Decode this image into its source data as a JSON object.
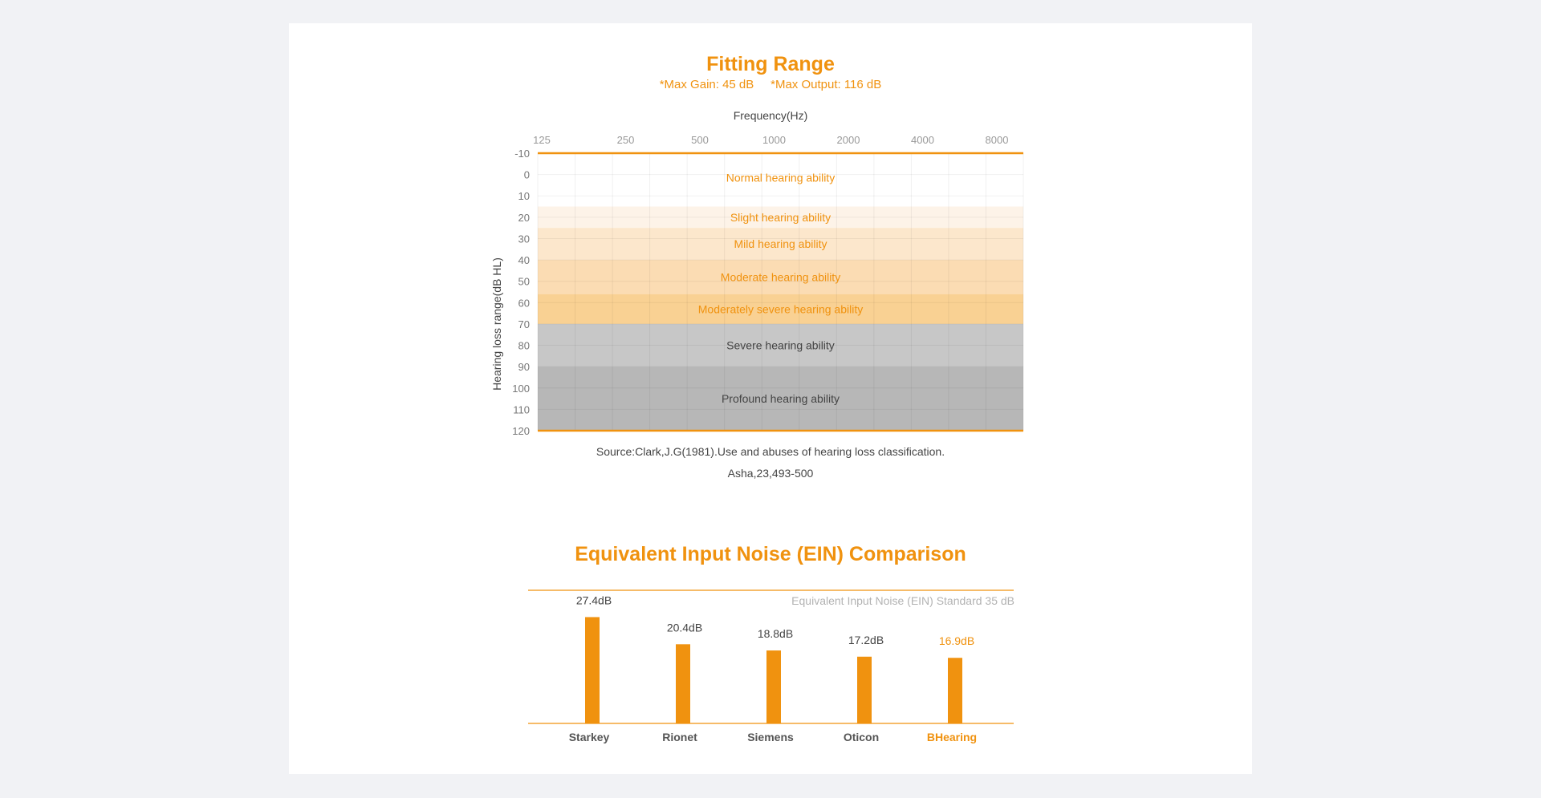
{
  "fitting": {
    "title": "Fitting Range",
    "subtitle": "*Max Gain: 45 dB     *Max Output: 116 dB",
    "source_line1": "Source:Clark,J.G(1981).Use and abuses of hearing loss classification.",
    "source_line2": "Asha,23,493-500"
  },
  "ein": {
    "title": "Equivalent Input Noise (EIN) Comparison",
    "standard_label": "Equivalent Input Noise (EIN) Standard 35 dB"
  },
  "colors": {
    "accent": "#f0920f",
    "grey_text": "#444444"
  },
  "chart_data": [
    {
      "type": "heatmap",
      "title": "Fitting Range",
      "xlabel": "Frequency(Hz)",
      "ylabel": "Hearing loss range(dB HL)",
      "x_ticks": [
        "125",
        "250",
        "500",
        "1000",
        "2000",
        "4000",
        "8000"
      ],
      "y_ticks": [
        -10,
        0,
        10,
        20,
        30,
        40,
        50,
        60,
        70,
        80,
        90,
        100,
        110,
        120
      ],
      "ylim": [
        -10,
        120
      ],
      "y_inverted": true,
      "grid": true,
      "bands": [
        {
          "label": "Normal hearing ability",
          "from": -10,
          "to": 15,
          "color": "#ffffff",
          "text_color": "#f0920f"
        },
        {
          "label": "Slight hearing ability",
          "from": 15,
          "to": 25,
          "color": "#fdf3e8",
          "text_color": "#f0920f"
        },
        {
          "label": "Mild hearing ability",
          "from": 25,
          "to": 40,
          "color": "#fce7cc",
          "text_color": "#f0920f"
        },
        {
          "label": "Moderate hearing ability",
          "from": 40,
          "to": 56,
          "color": "#fbdcb3",
          "text_color": "#f0920f"
        },
        {
          "label": "Moderately severe hearing ability",
          "from": 56,
          "to": 70,
          "color": "#f9d193",
          "text_color": "#f0920f"
        },
        {
          "label": "Severe hearing ability",
          "from": 70,
          "to": 90,
          "color": "#c7c7c7",
          "text_color": "#444444"
        },
        {
          "label": "Profound hearing ability",
          "from": 90,
          "to": 120,
          "color": "#b7b7b7",
          "text_color": "#444444"
        }
      ],
      "boundary_lines": [
        -10,
        120
      ]
    },
    {
      "type": "bar",
      "title": "Equivalent Input Noise (EIN) Comparison",
      "categories": [
        "Starkey",
        "Rionet",
        "Siemens",
        "Oticon",
        "BHearing"
      ],
      "values": [
        27.4,
        20.4,
        18.8,
        17.2,
        16.9
      ],
      "value_labels": [
        "27.4dB",
        "20.4dB",
        "18.8dB",
        "17.2dB",
        "16.9dB"
      ],
      "highlight": "BHearing",
      "reference_line": {
        "value": 35,
        "label": "Equivalent Input Noise (EIN) Standard 35 dB"
      },
      "ylim": [
        0,
        35
      ]
    }
  ]
}
